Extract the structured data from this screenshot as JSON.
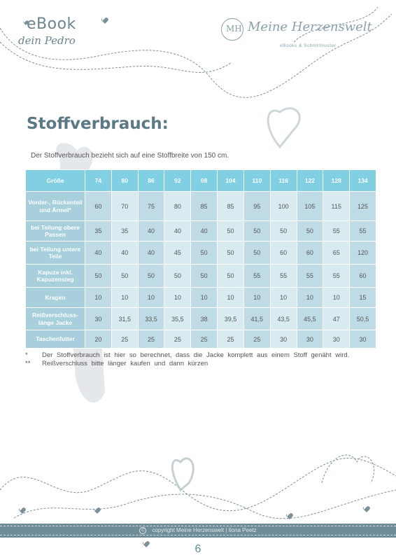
{
  "header": {
    "ebook_label": "eBook",
    "product_name": "dein Pedro",
    "brand_monogram": "MH",
    "brand_name": "Meine Herzenswelt",
    "brand_tagline": "eBooks & Schnittmuster"
  },
  "page_title": "Stoffverbrauch:",
  "intro_text": "Der Stoffverbrauch bezieht sich auf eine Stoffbreite von 150 cm.",
  "table": {
    "header_label": "Größe",
    "sizes": [
      "74",
      "80",
      "86",
      "92",
      "98",
      "104",
      "110",
      "116",
      "122",
      "128",
      "134"
    ],
    "rows": [
      {
        "label": "Vorder-, Rückenteil und Ärmel*",
        "values": [
          "60",
          "70",
          "75",
          "80",
          "85",
          "85",
          "95",
          "100",
          "105",
          "115",
          "125"
        ]
      },
      {
        "label": "bei Teilung obere Passen",
        "values": [
          "35",
          "35",
          "40",
          "40",
          "40",
          "50",
          "50",
          "50",
          "50",
          "55",
          "55"
        ]
      },
      {
        "label": "bei Teilung untere Teile",
        "values": [
          "40",
          "40",
          "40",
          "45",
          "50",
          "50",
          "50",
          "60",
          "60",
          "65",
          "120"
        ]
      },
      {
        "label": "Kapuze inkl. Kapuzensteg",
        "values": [
          "50",
          "50",
          "50",
          "50",
          "50",
          "50",
          "55",
          "55",
          "55",
          "55",
          "60"
        ]
      },
      {
        "label": "Kragen",
        "values": [
          "10",
          "10",
          "10",
          "10",
          "10",
          "10",
          "10",
          "10",
          "10",
          "10",
          "15"
        ]
      },
      {
        "label": "Reißverschluss-länge Jacke",
        "values": [
          "30",
          "31,5",
          "33,5",
          "35,5",
          "38",
          "39,5",
          "41,5",
          "43,5",
          "45,5",
          "47",
          "50,5"
        ]
      },
      {
        "label": "Taschenfutter",
        "values": [
          "20",
          "25",
          "25",
          "25",
          "25",
          "25",
          "25",
          "30",
          "30",
          "30",
          "30"
        ]
      }
    ]
  },
  "notes": [
    {
      "mark": "*",
      "text": "Der Stoffverbrauch ist hier so berechnet, dass die Jacke komplett aus einem Stoff genäht wird."
    },
    {
      "mark": "**",
      "text": "Reißverschluss bitte länger kaufen und dann kürzen"
    }
  ],
  "footer": {
    "copyright_symbol": "C",
    "copyright": "copyright Meine Herzenswelt | Ilona Peetz",
    "page_number": "6"
  },
  "colors": {
    "header_cell": "#80cfe3",
    "label_cell": "#a7cfdc",
    "value_dark": "#bfdce6",
    "value_light": "#d9ebf1",
    "title": "#5a7886",
    "footer_bar": "#6f8c99"
  }
}
